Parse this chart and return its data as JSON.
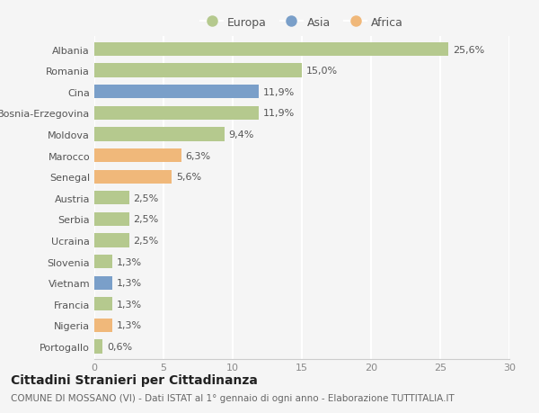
{
  "countries": [
    "Albania",
    "Romania",
    "Cina",
    "Bosnia-Erzegovina",
    "Moldova",
    "Marocco",
    "Senegal",
    "Austria",
    "Serbia",
    "Ucraina",
    "Slovenia",
    "Vietnam",
    "Francia",
    "Nigeria",
    "Portogallo"
  ],
  "values": [
    25.6,
    15.0,
    11.9,
    11.9,
    9.4,
    6.3,
    5.6,
    2.5,
    2.5,
    2.5,
    1.3,
    1.3,
    1.3,
    1.3,
    0.6
  ],
  "labels": [
    "25,6%",
    "15,0%",
    "11,9%",
    "11,9%",
    "9,4%",
    "6,3%",
    "5,6%",
    "2,5%",
    "2,5%",
    "2,5%",
    "1,3%",
    "1,3%",
    "1,3%",
    "1,3%",
    "0,6%"
  ],
  "continents": [
    "Europa",
    "Europa",
    "Asia",
    "Europa",
    "Europa",
    "Africa",
    "Africa",
    "Europa",
    "Europa",
    "Europa",
    "Europa",
    "Asia",
    "Europa",
    "Africa",
    "Europa"
  ],
  "continent_colors": {
    "Europa": "#b5c98e",
    "Asia": "#7a9fc9",
    "Africa": "#f0b87a"
  },
  "legend_order": [
    "Europa",
    "Asia",
    "Africa"
  ],
  "title": "Cittadini Stranieri per Cittadinanza",
  "subtitle": "COMUNE DI MOSSANO (VI) - Dati ISTAT al 1° gennaio di ogni anno - Elaborazione TUTTITALIA.IT",
  "xlim": [
    0,
    30
  ],
  "xticks": [
    0,
    5,
    10,
    15,
    20,
    25,
    30
  ],
  "background_color": "#f5f5f5",
  "grid_color": "#ffffff",
  "bar_height": 0.65,
  "title_fontsize": 10,
  "subtitle_fontsize": 7.5,
  "tick_fontsize": 8,
  "label_fontsize": 8
}
